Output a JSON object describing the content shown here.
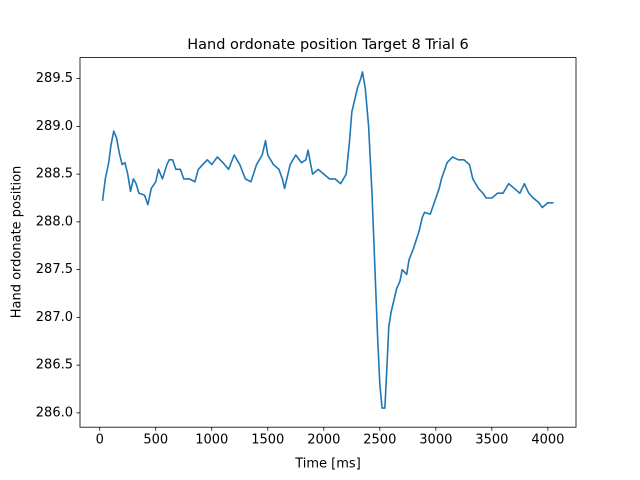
{
  "chart_data": {
    "type": "line",
    "title": "Hand ordonate position Target 8 Trial 6",
    "x_label": "Time [ms]",
    "y_label": "Hand ordonate position",
    "x": [
      25,
      50,
      80,
      100,
      125,
      150,
      175,
      200,
      225,
      250,
      275,
      300,
      325,
      350,
      400,
      430,
      460,
      500,
      525,
      560,
      600,
      620,
      650,
      680,
      720,
      750,
      800,
      850,
      880,
      920,
      960,
      1000,
      1050,
      1100,
      1150,
      1200,
      1250,
      1300,
      1350,
      1400,
      1450,
      1480,
      1500,
      1550,
      1600,
      1630,
      1650,
      1680,
      1700,
      1750,
      1800,
      1840,
      1860,
      1880,
      1900,
      1950,
      2000,
      2050,
      2100,
      2150,
      2200,
      2230,
      2250,
      2280,
      2300,
      2330,
      2345,
      2370,
      2400,
      2430,
      2460,
      2480,
      2500,
      2520,
      2545,
      2560,
      2580,
      2600,
      2650,
      2680,
      2700,
      2740,
      2760,
      2800,
      2850,
      2880,
      2900,
      2950,
      3000,
      3030,
      3050,
      3080,
      3100,
      3150,
      3200,
      3250,
      3300,
      3330,
      3380,
      3420,
      3450,
      3500,
      3550,
      3600,
      3650,
      3700,
      3750,
      3790,
      3830,
      3870,
      3920,
      3950,
      4000,
      4050
    ],
    "series": [
      {
        "name": "position",
        "color": "#1f77b4",
        "values": [
          288.22,
          288.45,
          288.62,
          288.8,
          288.95,
          288.88,
          288.72,
          288.6,
          288.62,
          288.5,
          288.32,
          288.45,
          288.4,
          288.3,
          288.28,
          288.18,
          288.35,
          288.42,
          288.55,
          288.45,
          288.6,
          288.65,
          288.65,
          288.55,
          288.55,
          288.45,
          288.45,
          288.42,
          288.55,
          288.6,
          288.65,
          288.6,
          288.68,
          288.62,
          288.55,
          288.7,
          288.6,
          288.45,
          288.42,
          288.6,
          288.7,
          288.85,
          288.7,
          288.6,
          288.55,
          288.45,
          288.35,
          288.5,
          288.6,
          288.7,
          288.62,
          288.65,
          288.75,
          288.62,
          288.5,
          288.55,
          288.5,
          288.45,
          288.45,
          288.4,
          288.5,
          288.85,
          289.15,
          289.3,
          289.4,
          289.5,
          289.57,
          289.4,
          289.0,
          288.3,
          287.4,
          286.8,
          286.3,
          286.05,
          286.05,
          286.4,
          286.9,
          287.05,
          287.3,
          287.38,
          287.5,
          287.45,
          287.6,
          287.72,
          287.9,
          288.05,
          288.1,
          288.08,
          288.25,
          288.35,
          288.45,
          288.55,
          288.62,
          288.68,
          288.65,
          288.65,
          288.6,
          288.45,
          288.35,
          288.3,
          288.25,
          288.25,
          288.3,
          288.3,
          288.4,
          288.35,
          288.3,
          288.4,
          288.3,
          288.25,
          288.2,
          288.15,
          288.2,
          288.2
        ]
      }
    ],
    "xlim": [
      -176,
      4251
    ],
    "ylim": [
      285.85,
      289.72
    ],
    "xticks": [
      0,
      500,
      1000,
      1500,
      2000,
      2500,
      3000,
      3500,
      4000
    ],
    "yticks": [
      {
        "value": 286,
        "label": "286.0"
      },
      286.5,
      {
        "value": 287,
        "label": "287.0"
      },
      287.5,
      {
        "value": 288,
        "label": "288.0"
      },
      288.5,
      {
        "value": 289,
        "label": "289.0"
      },
      289.5
    ]
  }
}
